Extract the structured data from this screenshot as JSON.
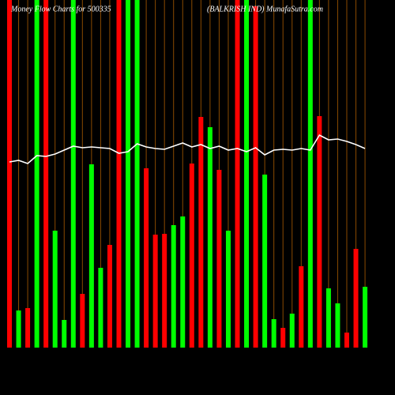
{
  "chart_data": {
    "type": "bar",
    "title": "Money Flow Charts for 500335",
    "subtitle": "(BALKRISH IND) MunafaSutra.com",
    "ylim": [
      0,
      440
    ],
    "values": [
      440,
      47,
      50,
      440,
      440,
      148,
      35,
      440,
      68,
      232,
      101,
      130,
      440,
      440,
      440,
      227,
      143,
      144,
      155,
      166,
      233,
      292,
      279,
      225,
      148,
      440,
      440,
      432,
      219,
      36,
      25,
      43,
      103,
      440,
      293,
      75,
      56,
      19,
      125,
      77
    ],
    "colors": [
      "#ff0000",
      "#00ff00",
      "#ff0000",
      "#00ff00",
      "#ff0000",
      "#00ff00",
      "#00ff00",
      "#00ff00",
      "#ff0000",
      "#00ff00",
      "#00ff00",
      "#ff0000",
      "#ff0000",
      "#00ff00",
      "#00ff00",
      "#ff0000",
      "#ff0000",
      "#ff0000",
      "#00ff00",
      "#00ff00",
      "#ff0000",
      "#ff0000",
      "#00ff00",
      "#ff0000",
      "#00ff00",
      "#ff0000",
      "#00ff00",
      "#ff0000",
      "#00ff00",
      "#00ff00",
      "#ff0000",
      "#00ff00",
      "#ff0000",
      "#00ff00",
      "#ff0000",
      "#00ff00",
      "#00ff00",
      "#ff0000",
      "#ff0000",
      "#00ff00"
    ],
    "line": [
      235,
      237,
      233,
      243,
      242,
      245,
      250,
      255,
      253,
      254,
      253,
      252,
      246,
      248,
      258,
      254,
      252,
      251,
      255,
      259,
      254,
      257,
      252,
      255,
      250,
      252,
      248,
      253,
      244,
      250,
      251,
      250,
      252,
      250,
      269,
      263,
      264,
      261,
      257,
      252
    ],
    "line_color": "#ffffff"
  }
}
